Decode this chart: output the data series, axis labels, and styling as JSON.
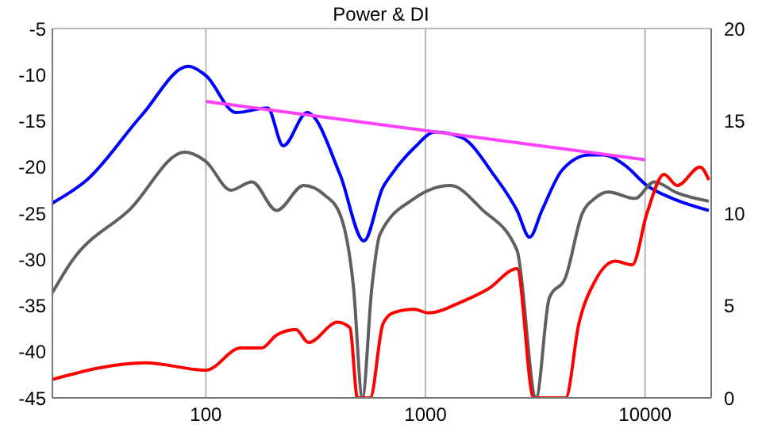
{
  "chart_data": {
    "type": "line",
    "title": "Power & DI",
    "log": "x",
    "grid": true,
    "xlim": [
      20,
      20000
    ],
    "xticks": [
      100,
      1000,
      10000
    ],
    "ylim": [
      -45,
      -5
    ],
    "yticks": [
      -45,
      -40,
      -35,
      -30,
      -25,
      -20,
      -15,
      -10,
      -5
    ],
    "y2lim": [
      0,
      20
    ],
    "y2ticks": [
      0,
      5,
      10,
      15,
      20
    ],
    "marker": "none",
    "line_style": "solid",
    "series": [
      {
        "color": "#0000ff",
        "x": [
          20,
          29,
          51,
          83,
          100,
          137,
          191,
          225,
          289,
          408,
          524,
          640,
          700,
          890,
          1105,
          1460,
          2040,
          2610,
          2980,
          3390,
          4200,
          5560,
          6500,
          8080,
          10200,
          13300,
          19500
        ],
        "values": [
          -23.9,
          -21.3,
          -14.4,
          -9.1,
          -10.1,
          -14.1,
          -13.6,
          -17.7,
          -14.1,
          -20.8,
          -28,
          -22.2,
          -20.8,
          -17.9,
          -16.2,
          -16.8,
          -20.8,
          -24.7,
          -27.6,
          -24.7,
          -20.3,
          -18.7,
          -18.7,
          -19.8,
          -22,
          -23.4,
          -24.7
        ]
      },
      {
        "color": "#606060",
        "x": [
          20,
          24.5,
          45,
          80,
          100,
          130,
          162,
          210,
          279,
          346,
          408,
          470,
          516,
          570,
          620,
          890,
          1300,
          1810,
          2610,
          3190,
          3660,
          4350,
          5160,
          5900,
          6800,
          9000,
          11000,
          14000,
          19500
        ],
        "values": [
          -33.6,
          -30.2,
          -24.6,
          -18.4,
          -19.4,
          -22.5,
          -21.6,
          -24.7,
          -22,
          -23,
          -25.1,
          -33,
          -45,
          -33,
          -27.3,
          -23.4,
          -22,
          -24.6,
          -29,
          -45,
          -34.2,
          -31.9,
          -25.1,
          -23.4,
          -22.7,
          -23.4,
          -21.6,
          -22.8,
          -23.7
        ]
      },
      {
        "color": "#ff0000",
        "axis": "y2",
        "x": [
          20,
          53,
          100,
          144,
          179,
          210,
          257,
          293,
          398,
          453,
          490,
          560,
          640,
          710,
          890,
          1030,
          1460,
          1930,
          2610,
          3110,
          4350,
          4990,
          5900,
          7300,
          8740,
          10200,
          12200,
          14000,
          17800,
          19500
        ],
        "values": [
          1,
          1.9,
          1.5,
          2.7,
          2.7,
          3.4,
          3.7,
          3,
          4.1,
          3.8,
          0,
          0,
          4,
          4.6,
          4.8,
          4.6,
          5.2,
          5.9,
          7,
          0,
          0,
          4,
          6.3,
          7.4,
          7.2,
          10,
          12.1,
          11.5,
          12.5,
          11.8
        ]
      },
      {
        "color": "#ff40ff",
        "x": [
          100,
          10000
        ],
        "values": [
          -12.9,
          -19.2
        ]
      }
    ]
  }
}
